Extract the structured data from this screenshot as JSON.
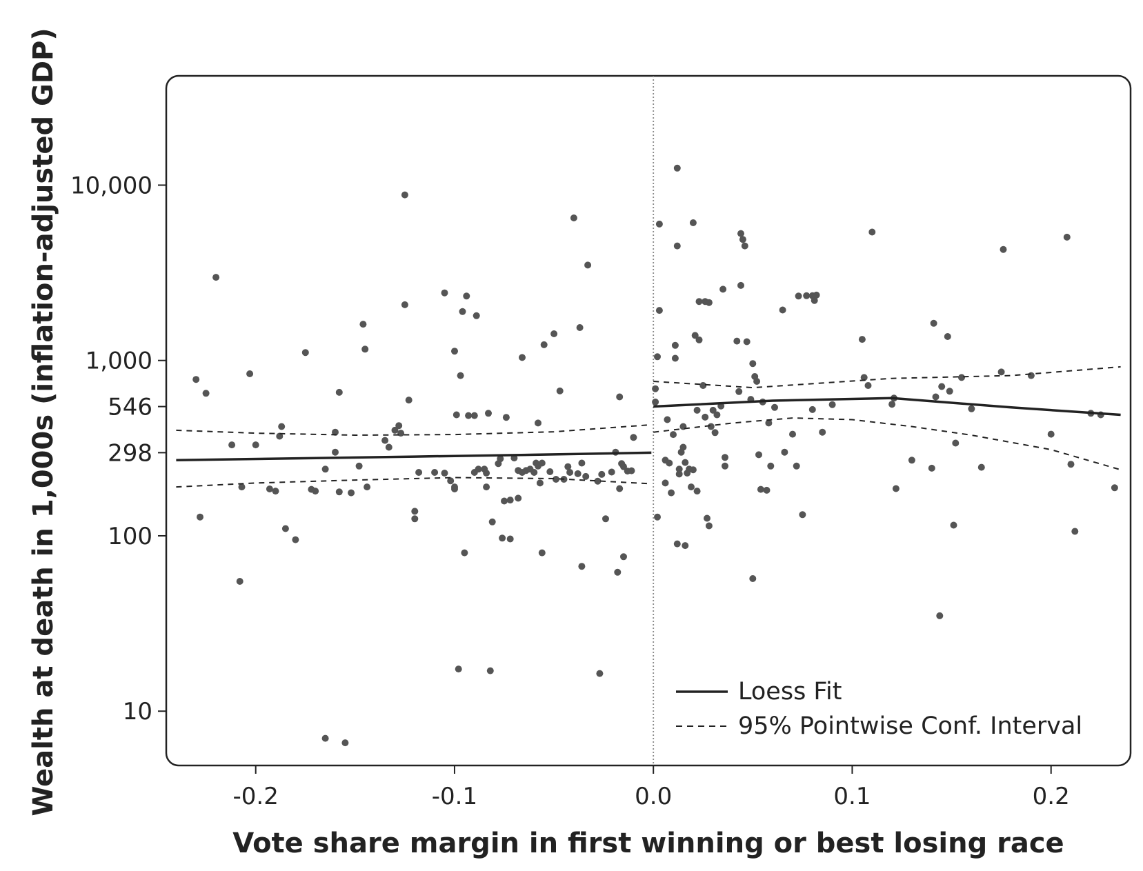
{
  "chart_data": {
    "type": "scatter",
    "xlabel": "Vote share margin in first winning or best losing race",
    "ylabel": "Wealth at death in 1,000s (inflation-adjusted GDP)",
    "x_scale": "linear",
    "y_scale": "log",
    "xlim": [
      -0.245,
      0.24
    ],
    "ylim": [
      4.9,
      42000
    ],
    "x_ticks": [
      {
        "value": -0.2,
        "label": "-0.2"
      },
      {
        "value": -0.1,
        "label": "-0.1"
      },
      {
        "value": 0.0,
        "label": "0.0"
      },
      {
        "value": 0.1,
        "label": "0.1"
      },
      {
        "value": 0.2,
        "label": "0.2"
      }
    ],
    "y_ticks": [
      {
        "value": 10,
        "label": "10"
      },
      {
        "value": 100,
        "label": "100"
      },
      {
        "value": 298,
        "label": "298"
      },
      {
        "value": 546,
        "label": "546"
      },
      {
        "value": 1000,
        "label": "1,000"
      },
      {
        "value": 10000,
        "label": "10,000"
      }
    ],
    "cutoff_line_x": 0.0,
    "grid": false,
    "legend_position": "bottom-right",
    "legend": [
      {
        "label": "Loess Fit",
        "style": "solid"
      },
      {
        "label": "95% Pointwise Conf. Interval",
        "style": "dashed"
      }
    ],
    "colors": {
      "points": "#555555",
      "lines": "#222222",
      "frame": "#222222",
      "background": "#ffffff"
    },
    "series": [
      {
        "name": "Loess Fit",
        "style": "solid",
        "segments": [
          [
            [
              -0.24,
              270
            ],
            [
              -0.12,
              283
            ],
            [
              -0.06,
              290
            ],
            [
              -0.001,
              298
            ]
          ],
          [
            [
              0.0,
              546
            ],
            [
              0.06,
              590
            ],
            [
              0.12,
              610
            ],
            [
              0.18,
              540
            ],
            [
              0.235,
              490
            ]
          ]
        ]
      },
      {
        "name": "95% Pointwise Conf. Interval (upper)",
        "style": "dashed",
        "segments": [
          [
            [
              -0.24,
              400
            ],
            [
              -0.2,
              385
            ],
            [
              -0.15,
              375
            ],
            [
              -0.1,
              378
            ],
            [
              -0.05,
              392
            ],
            [
              -0.001,
              430
            ]
          ],
          [
            [
              0.0,
              760
            ],
            [
              0.05,
              700
            ],
            [
              0.12,
              790
            ],
            [
              0.18,
              820
            ],
            [
              0.235,
              920
            ]
          ]
        ]
      },
      {
        "name": "95% Pointwise Conf. Interval (lower)",
        "style": "dashed",
        "segments": [
          [
            [
              -0.24,
              190
            ],
            [
              -0.2,
              200
            ],
            [
              -0.15,
              208
            ],
            [
              -0.1,
              215
            ],
            [
              -0.05,
              212
            ],
            [
              -0.001,
              198
            ]
          ],
          [
            [
              0.0,
              390
            ],
            [
              0.04,
              440
            ],
            [
              0.07,
              470
            ],
            [
              0.1,
              460
            ],
            [
              0.13,
              420
            ],
            [
              0.16,
              375
            ],
            [
              0.2,
              310
            ],
            [
              0.235,
              238
            ]
          ]
        ]
      }
    ],
    "points": [
      [
        -0.23,
        780
      ],
      [
        -0.225,
        650
      ],
      [
        -0.228,
        128
      ],
      [
        -0.22,
        2980
      ],
      [
        -0.212,
        330
      ],
      [
        -0.207,
        190
      ],
      [
        -0.208,
        55
      ],
      [
        -0.203,
        840
      ],
      [
        -0.2,
        330
      ],
      [
        -0.193,
        185
      ],
      [
        -0.19,
        180
      ],
      [
        -0.188,
        370
      ],
      [
        -0.187,
        420
      ],
      [
        -0.185,
        110
      ],
      [
        -0.18,
        95
      ],
      [
        -0.175,
        1110
      ],
      [
        -0.172,
        184
      ],
      [
        -0.17,
        180
      ],
      [
        -0.165,
        240
      ],
      [
        -0.165,
        7
      ],
      [
        -0.16,
        390
      ],
      [
        -0.16,
        300
      ],
      [
        -0.158,
        658
      ],
      [
        -0.158,
        178
      ],
      [
        -0.155,
        6.6
      ],
      [
        -0.152,
        176
      ],
      [
        -0.148,
        250
      ],
      [
        -0.146,
        1610
      ],
      [
        -0.145,
        1160
      ],
      [
        -0.144,
        190
      ],
      [
        -0.135,
        350
      ],
      [
        -0.133,
        320
      ],
      [
        -0.13,
        400
      ],
      [
        -0.127,
        385
      ],
      [
        -0.128,
        425
      ],
      [
        -0.125,
        8800
      ],
      [
        -0.125,
        2080
      ],
      [
        -0.123,
        595
      ],
      [
        -0.12,
        138
      ],
      [
        -0.12,
        125
      ],
      [
        -0.118,
        230
      ],
      [
        -0.11,
        230
      ],
      [
        -0.105,
        228
      ],
      [
        -0.105,
        2430
      ],
      [
        -0.102,
        206
      ],
      [
        -0.1,
        185
      ],
      [
        -0.1,
        190
      ],
      [
        -0.1,
        1130
      ],
      [
        -0.099,
        490
      ],
      [
        -0.098,
        17.4
      ],
      [
        -0.097,
        820
      ],
      [
        -0.096,
        1900
      ],
      [
        -0.095,
        80
      ],
      [
        -0.094,
        2330
      ],
      [
        -0.093,
        485
      ],
      [
        -0.09,
        485
      ],
      [
        -0.09,
        230
      ],
      [
        -0.089,
        1800
      ],
      [
        -0.088,
        240
      ],
      [
        -0.085,
        240
      ],
      [
        -0.084,
        228
      ],
      [
        -0.084,
        190
      ],
      [
        -0.083,
        500
      ],
      [
        -0.082,
        17
      ],
      [
        -0.081,
        120
      ],
      [
        -0.078,
        258
      ],
      [
        -0.077,
        275
      ],
      [
        -0.076,
        97
      ],
      [
        -0.075,
        158
      ],
      [
        -0.074,
        474
      ],
      [
        -0.072,
        160
      ],
      [
        -0.072,
        96
      ],
      [
        -0.07,
        278
      ],
      [
        -0.068,
        236
      ],
      [
        -0.068,
        164
      ],
      [
        -0.066,
        230
      ],
      [
        -0.066,
        1040
      ],
      [
        -0.064,
        236
      ],
      [
        -0.062,
        240
      ],
      [
        -0.06,
        230
      ],
      [
        -0.059,
        260
      ],
      [
        -0.058,
        250
      ],
      [
        -0.058,
        440
      ],
      [
        -0.057,
        200
      ],
      [
        -0.056,
        80
      ],
      [
        -0.056,
        260
      ],
      [
        -0.055,
        1230
      ],
      [
        -0.052,
        232
      ],
      [
        -0.05,
        1420
      ],
      [
        -0.049,
        210
      ],
      [
        -0.047,
        670
      ],
      [
        -0.045,
        210
      ],
      [
        -0.043,
        248
      ],
      [
        -0.042,
        230
      ],
      [
        -0.04,
        6500
      ],
      [
        -0.038,
        226
      ],
      [
        -0.037,
        1540
      ],
      [
        -0.036,
        67
      ],
      [
        -0.036,
        260
      ],
      [
        -0.034,
        218
      ],
      [
        -0.033,
        3500
      ],
      [
        -0.028,
        205
      ],
      [
        -0.027,
        16.4
      ],
      [
        -0.026,
        224
      ],
      [
        -0.024,
        125
      ],
      [
        -0.021,
        231
      ],
      [
        -0.019,
        300
      ],
      [
        -0.018,
        62
      ],
      [
        -0.017,
        620
      ],
      [
        -0.017,
        186
      ],
      [
        -0.016,
        258
      ],
      [
        -0.015,
        248
      ],
      [
        -0.015,
        76
      ],
      [
        -0.013,
        234
      ],
      [
        -0.011,
        235
      ],
      [
        -0.01,
        364
      ],
      [
        0.001,
        580
      ],
      [
        0.001,
        690
      ],
      [
        0.002,
        1050
      ],
      [
        0.002,
        128
      ],
      [
        0.003,
        6000
      ],
      [
        0.003,
        1930
      ],
      [
        0.006,
        270
      ],
      [
        0.006,
        200
      ],
      [
        0.007,
        460
      ],
      [
        0.008,
        260
      ],
      [
        0.009,
        176
      ],
      [
        0.01,
        378
      ],
      [
        0.011,
        1220
      ],
      [
        0.011,
        1030
      ],
      [
        0.012,
        90
      ],
      [
        0.012,
        12500
      ],
      [
        0.012,
        4500
      ],
      [
        0.013,
        240
      ],
      [
        0.013,
        225
      ],
      [
        0.014,
        300
      ],
      [
        0.015,
        420
      ],
      [
        0.015,
        320
      ],
      [
        0.016,
        88
      ],
      [
        0.016,
        262
      ],
      [
        0.017,
        228
      ],
      [
        0.018,
        240
      ],
      [
        0.019,
        190
      ],
      [
        0.02,
        6100
      ],
      [
        0.02,
        238
      ],
      [
        0.021,
        1390
      ],
      [
        0.022,
        180
      ],
      [
        0.022,
        520
      ],
      [
        0.023,
        2170
      ],
      [
        0.023,
        1310
      ],
      [
        0.025,
        720
      ],
      [
        0.026,
        2170
      ],
      [
        0.026,
        475
      ],
      [
        0.027,
        126
      ],
      [
        0.028,
        2140
      ],
      [
        0.028,
        114
      ],
      [
        0.029,
        420
      ],
      [
        0.03,
        520
      ],
      [
        0.031,
        388
      ],
      [
        0.032,
        490
      ],
      [
        0.034,
        550
      ],
      [
        0.035,
        2550
      ],
      [
        0.036,
        280
      ],
      [
        0.036,
        250
      ],
      [
        0.042,
        1290
      ],
      [
        0.043,
        665
      ],
      [
        0.044,
        2680
      ],
      [
        0.044,
        5300
      ],
      [
        0.045,
        4900
      ],
      [
        0.046,
        4500
      ],
      [
        0.047,
        1280
      ],
      [
        0.049,
        600
      ],
      [
        0.05,
        57
      ],
      [
        0.05,
        960
      ],
      [
        0.051,
        810
      ],
      [
        0.052,
        760
      ],
      [
        0.053,
        290
      ],
      [
        0.054,
        184
      ],
      [
        0.055,
        580
      ],
      [
        0.057,
        182
      ],
      [
        0.058,
        440
      ],
      [
        0.059,
        250
      ],
      [
        0.061,
        540
      ],
      [
        0.065,
        1940
      ],
      [
        0.066,
        300
      ],
      [
        0.07,
        380
      ],
      [
        0.072,
        250
      ],
      [
        0.073,
        2330
      ],
      [
        0.075,
        132
      ],
      [
        0.077,
        2340
      ],
      [
        0.08,
        2340
      ],
      [
        0.081,
        2200
      ],
      [
        0.082,
        2360
      ],
      [
        0.085,
        390
      ],
      [
        0.08,
        525
      ],
      [
        0.09,
        560
      ],
      [
        0.105,
        1320
      ],
      [
        0.106,
        800
      ],
      [
        0.108,
        720
      ],
      [
        0.11,
        5400
      ],
      [
        0.12,
        563
      ],
      [
        0.121,
        610
      ],
      [
        0.122,
        186
      ],
      [
        0.13,
        270
      ],
      [
        0.14,
        243
      ],
      [
        0.141,
        1630
      ],
      [
        0.142,
        620
      ],
      [
        0.144,
        35
      ],
      [
        0.145,
        710
      ],
      [
        0.148,
        1370
      ],
      [
        0.149,
        668
      ],
      [
        0.151,
        115
      ],
      [
        0.152,
        338
      ],
      [
        0.155,
        800
      ],
      [
        0.16,
        530
      ],
      [
        0.165,
        246
      ],
      [
        0.175,
        860
      ],
      [
        0.176,
        4300
      ],
      [
        0.19,
        820
      ],
      [
        0.2,
        380
      ],
      [
        0.208,
        5050
      ],
      [
        0.21,
        256
      ],
      [
        0.212,
        106
      ],
      [
        0.22,
        500
      ],
      [
        0.225,
        490
      ],
      [
        0.232,
        188
      ]
    ]
  }
}
